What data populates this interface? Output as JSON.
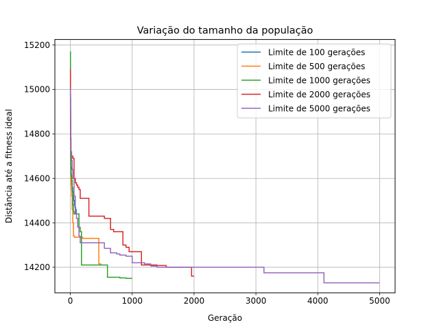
{
  "chart_data": {
    "type": "line",
    "title": "Variação do tamanho da população",
    "xlabel": "Geração",
    "ylabel": "Distância até a fitness ideal",
    "xlim": [
      -250,
      5250
    ],
    "ylim": [
      14085,
      15225
    ],
    "xticks": [
      0,
      1000,
      2000,
      3000,
      4000,
      5000
    ],
    "xtick_labels": [
      "0",
      "1000",
      "2000",
      "3000",
      "4000",
      "5000"
    ],
    "yticks": [
      14200,
      14400,
      14600,
      14800,
      15000,
      15200
    ],
    "ytick_labels": [
      "14200",
      "14400",
      "14600",
      "14800",
      "15000",
      "15200"
    ],
    "grid": true,
    "legend_position": "top-right",
    "series": [
      {
        "name": "Limite de 100 gerações",
        "color": "#1f77b4",
        "x": [
          0,
          2,
          4,
          6,
          8,
          10,
          14,
          18,
          22,
          26,
          30,
          38,
          46,
          55,
          65,
          75,
          85,
          95,
          100
        ],
        "y": [
          15110,
          14980,
          14870,
          14780,
          14700,
          14650,
          14620,
          14600,
          14585,
          14575,
          14560,
          14540,
          14520,
          14500,
          14480,
          14470,
          14460,
          14440,
          14440
        ]
      },
      {
        "name": "Limite de 500 gerações",
        "color": "#ff7f0e",
        "x": [
          0,
          2,
          4,
          6,
          8,
          12,
          18,
          22,
          30,
          40,
          50,
          70,
          100,
          150,
          200,
          260,
          300,
          350,
          420,
          460,
          500
        ],
        "y": [
          15090,
          14900,
          14760,
          14660,
          14600,
          14570,
          14550,
          14520,
          14460,
          14400,
          14340,
          14335,
          14335,
          14335,
          14330,
          14330,
          14330,
          14330,
          14330,
          14215,
          14215
        ]
      },
      {
        "name": "Limite de 1000 gerações",
        "color": "#2ca02c",
        "x": [
          0,
          2,
          4,
          6,
          8,
          10,
          14,
          20,
          25,
          30,
          40,
          50,
          60,
          80,
          100,
          120,
          140,
          160,
          180,
          200,
          300,
          400,
          500,
          600,
          650,
          700,
          800,
          900,
          1000
        ],
        "y": [
          15170,
          14920,
          14780,
          14690,
          14640,
          14620,
          14610,
          14600,
          14590,
          14540,
          14480,
          14450,
          14440,
          14440,
          14440,
          14440,
          14380,
          14360,
          14210,
          14210,
          14210,
          14210,
          14210,
          14155,
          14155,
          14155,
          14152,
          14150,
          14150
        ]
      },
      {
        "name": "Limite de 2000 gerações",
        "color": "#d62728",
        "x": [
          0,
          2,
          4,
          6,
          10,
          20,
          40,
          60,
          80,
          100,
          120,
          140,
          160,
          200,
          250,
          300,
          400,
          500,
          550,
          600,
          650,
          700,
          750,
          800,
          850,
          900,
          950,
          1000,
          1100,
          1150,
          1200,
          1300,
          1400,
          1500,
          1550,
          1600,
          1700,
          1800,
          1900,
          1960,
          2000
        ],
        "y": [
          15090,
          14960,
          14860,
          14780,
          14720,
          14700,
          14690,
          14600,
          14580,
          14570,
          14560,
          14550,
          14510,
          14510,
          14510,
          14430,
          14430,
          14430,
          14420,
          14420,
          14370,
          14360,
          14360,
          14360,
          14300,
          14290,
          14270,
          14270,
          14270,
          14210,
          14210,
          14210,
          14208,
          14208,
          14200,
          14200,
          14200,
          14200,
          14200,
          14160,
          14160
        ]
      },
      {
        "name": "Limite de 5000 gerações",
        "color": "#9467bd",
        "x": [
          0,
          2,
          4,
          6,
          10,
          20,
          30,
          40,
          60,
          80,
          100,
          120,
          140,
          160,
          200,
          300,
          400,
          450,
          500,
          550,
          600,
          650,
          700,
          750,
          800,
          850,
          900,
          950,
          1000,
          1100,
          1200,
          1300,
          1400,
          1500,
          2000,
          2500,
          3000,
          3100,
          3130,
          3500,
          4000,
          4080,
          4100,
          4500,
          5000
        ],
        "y": [
          15000,
          14880,
          14800,
          14760,
          14720,
          14680,
          14640,
          14600,
          14520,
          14440,
          14420,
          14380,
          14340,
          14310,
          14310,
          14310,
          14310,
          14310,
          14310,
          14285,
          14285,
          14265,
          14265,
          14260,
          14255,
          14255,
          14250,
          14250,
          14220,
          14220,
          14215,
          14205,
          14200,
          14200,
          14200,
          14200,
          14200,
          14200,
          14175,
          14175,
          14175,
          14175,
          14130,
          14130,
          14130
        ]
      }
    ]
  }
}
